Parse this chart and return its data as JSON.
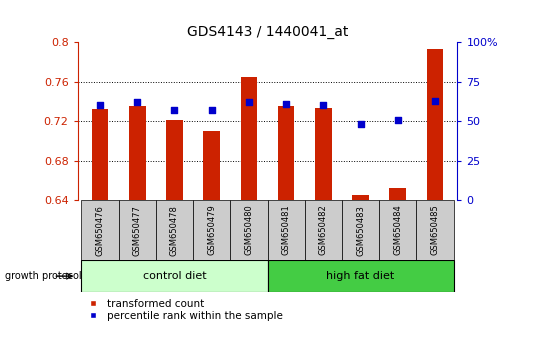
{
  "title": "GDS4143 / 1440041_at",
  "samples": [
    "GSM650476",
    "GSM650477",
    "GSM650478",
    "GSM650479",
    "GSM650480",
    "GSM650481",
    "GSM650482",
    "GSM650483",
    "GSM650484",
    "GSM650485"
  ],
  "transformed_count": [
    0.732,
    0.735,
    0.721,
    0.71,
    0.765,
    0.735,
    0.733,
    0.645,
    0.652,
    0.793
  ],
  "percentile_rank": [
    60,
    62,
    57,
    57,
    62,
    61,
    60,
    48,
    51,
    63
  ],
  "ylim_left": [
    0.64,
    0.8
  ],
  "ylim_right": [
    0,
    100
  ],
  "yticks_left": [
    0.64,
    0.68,
    0.72,
    0.76,
    0.8
  ],
  "yticks_right": [
    0,
    25,
    50,
    75,
    100
  ],
  "ytick_labels_right": [
    "0",
    "25",
    "50",
    "75",
    "100%"
  ],
  "bar_color": "#cc2200",
  "dot_color": "#0000cc",
  "bar_width": 0.45,
  "groups": [
    {
      "label": "control diet",
      "start": 0,
      "end": 4,
      "color": "#ccffcc"
    },
    {
      "label": "high fat diet",
      "start": 5,
      "end": 9,
      "color": "#44cc44"
    }
  ],
  "group_row_label": "growth protocol",
  "legend_items": [
    {
      "label": "transformed count",
      "color": "#cc2200"
    },
    {
      "label": "percentile rank within the sample",
      "color": "#0000cc"
    }
  ],
  "tick_label_area_color": "#cccccc",
  "left_axis_color": "#cc2200",
  "right_axis_color": "#0000cc"
}
